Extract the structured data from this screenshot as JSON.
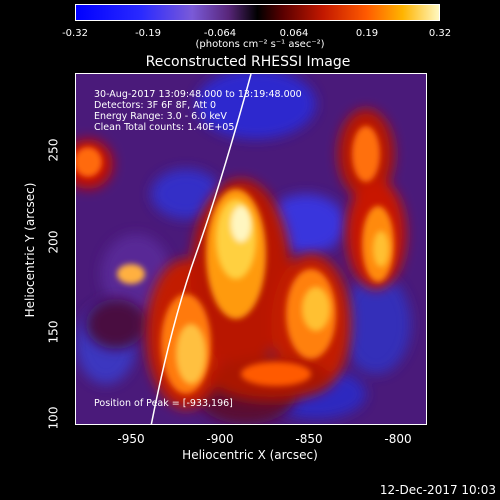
{
  "colorbar": {
    "ticks": [
      "-0.32",
      "-0.19",
      "-0.064",
      "0.064",
      "0.19",
      "0.32"
    ],
    "units": "(photons cm⁻² s⁻¹ asec⁻²)"
  },
  "title": "Reconstructed RHESSI Image",
  "info": {
    "time": "30-Aug-2017 13:09:48.000 to 13:19:48.000",
    "detectors": "Detectors: 3F 6F 8F, Att 0",
    "energy": "Energy Range: 3.0 - 6.0 keV",
    "method": "Clean     Total counts: 1.40E+05",
    "peak": "Position of Peak = [-933,196]"
  },
  "axes": {
    "xlabel": "Heliocentric X (arcsec)",
    "ylabel": "Heliocentric Y (arcsec)",
    "xticks": [
      "-950",
      "-900",
      "-850",
      "-800"
    ],
    "yticks": [
      "250",
      "200",
      "150",
      "100"
    ]
  },
  "footer": "12-Dec-2017 10:03",
  "colors": {
    "background": "#000000",
    "text": "#ffffff"
  }
}
